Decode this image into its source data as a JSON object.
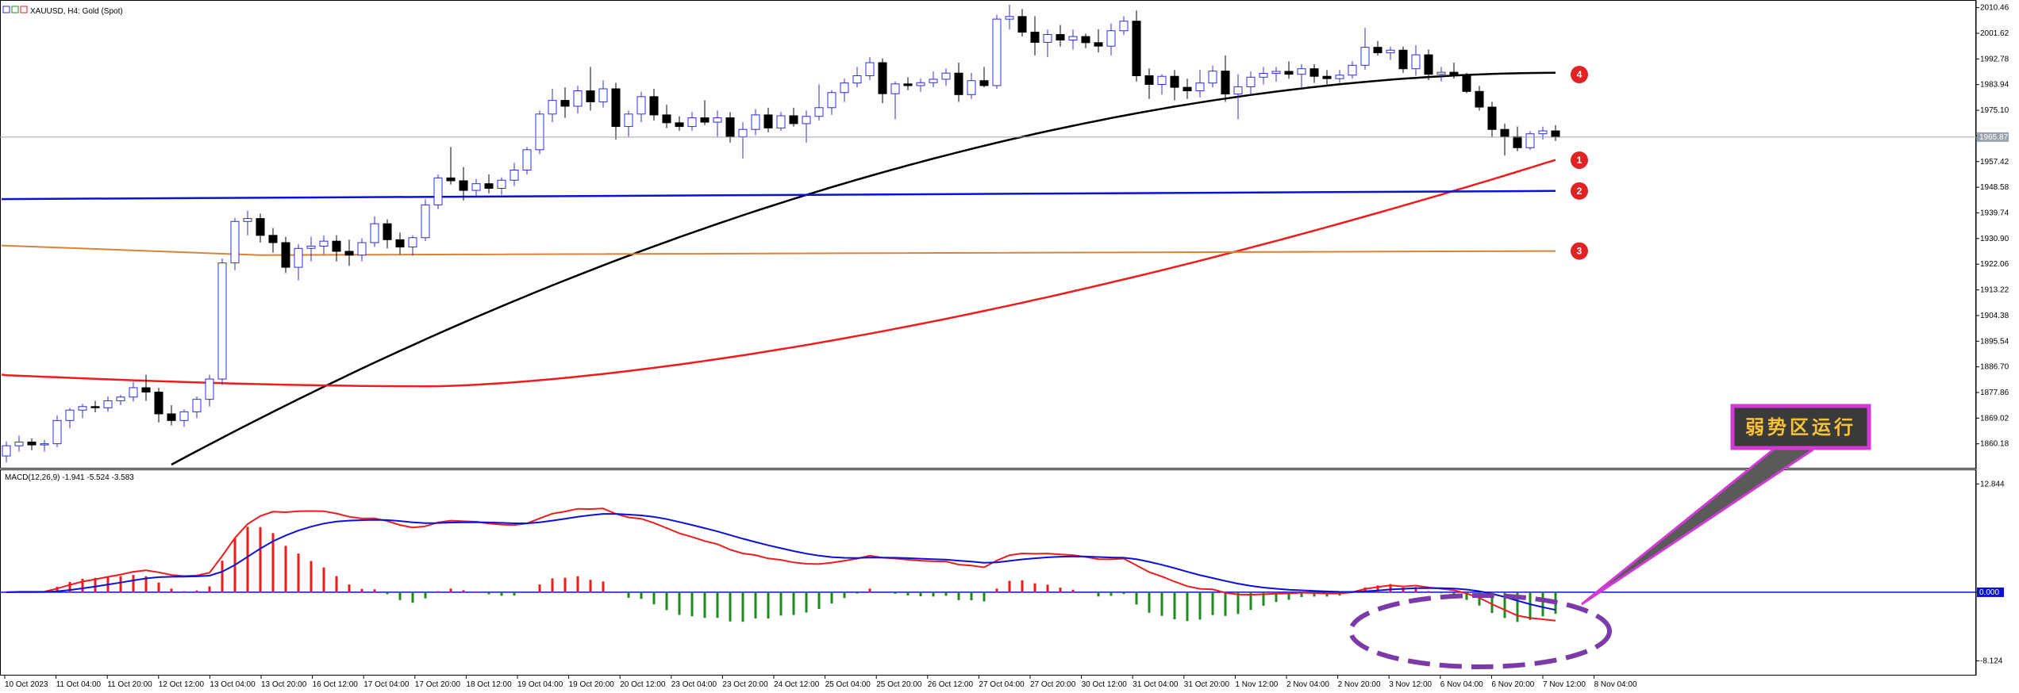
{
  "header": {
    "symbol_line": "XAUUSD, H4:  Gold (Spot)",
    "macd_line": "MACD(12,26,9) -1.941 -5.524 -3.583"
  },
  "colors": {
    "bull_candle": "#ffffff",
    "bear_candle": "#000000",
    "candle_outline": "#2c2cd8",
    "ma_black": "#000000",
    "ma_red": "#ee1c1c",
    "ma_blue": "#0a10d6",
    "ma_orange": "#d9823a",
    "macd_line": "#ee1c1c",
    "signal_line": "#0a10d6",
    "hist_pos": "#ee1c1c",
    "hist_neg": "#1f8a1f",
    "callout_border": "#d23ad6",
    "callout_fill": "#3a3a3a",
    "marker_fill": "#e02424",
    "price_line": "#9aa3ad"
  },
  "chart_data": [
    {
      "type": "candlestick",
      "name": "XAUUSD H4",
      "ylim": [
        1853.0,
        2012.0
      ],
      "y_ticks": [
        "2010.46",
        "2001.62",
        "1992.78",
        "1983.94",
        "1975.10",
        "1966.26",
        "1957.42",
        "1948.58",
        "1939.74",
        "1930.90",
        "1922.06",
        "1913.22",
        "1904.38",
        "1895.54",
        "1886.70",
        "1877.86",
        "1869.02",
        "1860.18"
      ],
      "current_price_label": "1965.87",
      "current_price": 1965.87,
      "x_ticks": [
        "10 Oct 2023",
        "11 Oct 04:00",
        "11 Oct 20:00",
        "12 Oct 12:00",
        "13 Oct 04:00",
        "13 Oct 20:00",
        "16 Oct 12:00",
        "17 Oct 04:00",
        "17 Oct 20:00",
        "18 Oct 12:00",
        "19 Oct 04:00",
        "19 Oct 20:00",
        "20 Oct 12:00",
        "23 Oct 04:00",
        "23 Oct 20:00",
        "24 Oct 12:00",
        "25 Oct 04:00",
        "25 Oct 20:00",
        "26 Oct 12:00",
        "27 Oct 04:00",
        "27 Oct 20:00",
        "30 Oct 12:00",
        "31 Oct 04:00",
        "31 Oct 20:00",
        "1 Nov 12:00",
        "2 Nov 04:00",
        "2 Nov 20:00",
        "3 Nov 12:00",
        "6 Nov 04:00",
        "6 Nov 20:00",
        "7 Nov 12:00",
        "8 Nov 04:00"
      ],
      "ohlc": [
        [
          1856.0,
          1861.0,
          1853.8,
          1859.5
        ],
        [
          1859.5,
          1863.0,
          1857.5,
          1860.8
        ],
        [
          1860.8,
          1862.0,
          1858.0,
          1859.8
        ],
        [
          1859.8,
          1861.5,
          1857.5,
          1860.2
        ],
        [
          1860.2,
          1870.0,
          1859.0,
          1868.2
        ],
        [
          1868.2,
          1872.5,
          1865.5,
          1871.8
        ],
        [
          1871.8,
          1874.0,
          1869.0,
          1873.0
        ],
        [
          1873.0,
          1875.0,
          1871.0,
          1872.6
        ],
        [
          1872.6,
          1876.5,
          1871.2,
          1875.0
        ],
        [
          1875.0,
          1877.0,
          1873.5,
          1876.3
        ],
        [
          1876.3,
          1881.5,
          1874.8,
          1879.5
        ],
        [
          1879.5,
          1884.0,
          1875.0,
          1878.0
        ],
        [
          1878.0,
          1879.5,
          1867.5,
          1870.5
        ],
        [
          1870.5,
          1873.5,
          1866.5,
          1868.2
        ],
        [
          1868.2,
          1872.0,
          1866.0,
          1871.2
        ],
        [
          1871.2,
          1876.5,
          1869.0,
          1875.5
        ],
        [
          1875.5,
          1884.0,
          1873.0,
          1882.5
        ],
        [
          1882.5,
          1924.0,
          1880.5,
          1922.5
        ],
        [
          1922.5,
          1938.0,
          1920.0,
          1936.8
        ],
        [
          1936.8,
          1940.5,
          1932.0,
          1937.8
        ],
        [
          1937.8,
          1939.5,
          1929.5,
          1932.0
        ],
        [
          1932.0,
          1934.5,
          1926.0,
          1929.5
        ],
        [
          1929.5,
          1931.5,
          1919.0,
          1921.0
        ],
        [
          1921.0,
          1929.0,
          1916.5,
          1927.5
        ],
        [
          1927.5,
          1931.5,
          1923.0,
          1928.3
        ],
        [
          1928.3,
          1932.0,
          1925.5,
          1930.0
        ],
        [
          1930.0,
          1932.0,
          1923.0,
          1926.5
        ],
        [
          1926.5,
          1930.5,
          1921.5,
          1925.2
        ],
        [
          1925.2,
          1931.0,
          1923.0,
          1929.5
        ],
        [
          1929.5,
          1938.5,
          1928.0,
          1936.0
        ],
        [
          1936.0,
          1937.5,
          1927.5,
          1930.5
        ],
        [
          1930.5,
          1933.0,
          1925.5,
          1928.0
        ],
        [
          1928.0,
          1932.0,
          1925.0,
          1931.2
        ],
        [
          1931.2,
          1944.5,
          1930.0,
          1942.5
        ],
        [
          1942.5,
          1953.0,
          1941.0,
          1951.8
        ],
        [
          1951.8,
          1962.5,
          1949.5,
          1950.8
        ],
        [
          1950.8,
          1955.5,
          1944.0,
          1947.5
        ],
        [
          1947.5,
          1951.5,
          1945.0,
          1949.8
        ],
        [
          1949.8,
          1953.0,
          1946.5,
          1948.2
        ],
        [
          1948.2,
          1952.0,
          1946.0,
          1951.0
        ],
        [
          1951.0,
          1957.0,
          1949.0,
          1954.5
        ],
        [
          1954.5,
          1962.5,
          1953.0,
          1961.5
        ],
        [
          1961.5,
          1975.0,
          1960.0,
          1973.8
        ],
        [
          1973.8,
          1982.5,
          1971.0,
          1978.5
        ],
        [
          1978.5,
          1983.0,
          1972.5,
          1976.5
        ],
        [
          1976.5,
          1983.5,
          1974.0,
          1981.8
        ],
        [
          1981.8,
          1990.0,
          1975.0,
          1978.0
        ],
        [
          1978.0,
          1985.5,
          1976.0,
          1982.5
        ],
        [
          1982.5,
          1984.5,
          1965.0,
          1969.5
        ],
        [
          1969.5,
          1975.0,
          1966.0,
          1973.8
        ],
        [
          1973.8,
          1981.5,
          1971.0,
          1979.8
        ],
        [
          1979.8,
          1982.5,
          1971.5,
          1973.5
        ],
        [
          1973.5,
          1977.0,
          1969.0,
          1970.8
        ],
        [
          1970.8,
          1973.0,
          1968.0,
          1969.5
        ],
        [
          1969.5,
          1974.5,
          1968.0,
          1972.5
        ],
        [
          1972.5,
          1978.5,
          1970.0,
          1971.0
        ],
        [
          1971.0,
          1975.0,
          1966.0,
          1972.5
        ],
        [
          1972.5,
          1974.5,
          1964.0,
          1966.0
        ],
        [
          1966.0,
          1971.0,
          1958.5,
          1968.5
        ],
        [
          1968.5,
          1975.5,
          1966.5,
          1973.5
        ],
        [
          1973.5,
          1976.0,
          1967.5,
          1969.0
        ],
        [
          1969.0,
          1974.5,
          1968.0,
          1973.2
        ],
        [
          1973.2,
          1976.0,
          1969.5,
          1970.5
        ],
        [
          1970.5,
          1975.0,
          1964.0,
          1973.0
        ],
        [
          1973.0,
          1984.0,
          1971.5,
          1976.0
        ],
        [
          1976.0,
          1982.0,
          1973.5,
          1981.2
        ],
        [
          1981.2,
          1986.0,
          1978.0,
          1984.5
        ],
        [
          1984.5,
          1990.0,
          1983.0,
          1987.0
        ],
        [
          1987.0,
          1993.5,
          1985.5,
          1991.5
        ],
        [
          1991.5,
          1993.0,
          1977.5,
          1980.8
        ],
        [
          1980.8,
          1985.0,
          1972.0,
          1984.2
        ],
        [
          1984.2,
          1986.5,
          1982.0,
          1983.6
        ],
        [
          1983.6,
          1986.0,
          1981.5,
          1984.6
        ],
        [
          1984.6,
          1988.5,
          1983.0,
          1985.8
        ],
        [
          1985.8,
          1989.5,
          1983.5,
          1987.9
        ],
        [
          1987.9,
          1991.5,
          1978.0,
          1980.5
        ],
        [
          1980.5,
          1988.0,
          1979.0,
          1985.3
        ],
        [
          1985.3,
          1990.0,
          1983.0,
          1983.6
        ],
        [
          1983.6,
          2008.0,
          1982.5,
          2006.5
        ],
        [
          2006.5,
          2011.5,
          2003.0,
          2007.4
        ],
        [
          2007.4,
          2010.0,
          2000.5,
          2002.0
        ],
        [
          2002.0,
          2007.5,
          1994.0,
          1998.5
        ],
        [
          1998.5,
          2003.0,
          1993.5,
          2001.2
        ],
        [
          2001.2,
          2004.5,
          1997.0,
          1999.3
        ],
        [
          1999.3,
          2003.0,
          1996.0,
          2000.5
        ],
        [
          2000.5,
          2001.5,
          1996.5,
          1998.4
        ],
        [
          1998.4,
          2003.0,
          1995.0,
          1997.2
        ],
        [
          1997.2,
          2005.0,
          1994.0,
          2002.5
        ],
        [
          2002.5,
          2007.5,
          2001.0,
          2005.8
        ],
        [
          2005.8,
          2009.5,
          1985.0,
          1987.0
        ],
        [
          1987.0,
          1989.5,
          1979.0,
          1984.0
        ],
        [
          1984.0,
          1987.5,
          1980.5,
          1986.8
        ],
        [
          1986.8,
          1989.0,
          1978.5,
          1983.0
        ],
        [
          1983.0,
          1986.0,
          1979.0,
          1981.8
        ],
        [
          1981.8,
          1989.0,
          1979.5,
          1984.5
        ],
        [
          1984.5,
          1990.5,
          1983.0,
          1988.6
        ],
        [
          1988.6,
          1994.0,
          1978.0,
          1980.7
        ],
        [
          1980.7,
          1987.5,
          1972.0,
          1983.2
        ],
        [
          1983.2,
          1988.5,
          1980.5,
          1986.5
        ],
        [
          1986.5,
          1990.0,
          1984.0,
          1987.8
        ],
        [
          1987.8,
          1990.0,
          1985.0,
          1988.5
        ],
        [
          1988.5,
          1992.0,
          1986.0,
          1987.5
        ],
        [
          1987.5,
          1991.0,
          1983.0,
          1989.4
        ],
        [
          1989.4,
          1991.0,
          1984.5,
          1986.8
        ],
        [
          1986.8,
          1989.0,
          1984.0,
          1986.0
        ],
        [
          1986.0,
          1989.0,
          1984.5,
          1987.2
        ],
        [
          1987.2,
          1992.0,
          1986.0,
          1990.6
        ],
        [
          1990.6,
          2003.5,
          1989.0,
          1996.8
        ],
        [
          1996.8,
          1999.0,
          1994.0,
          1994.9
        ],
        [
          1994.9,
          1997.0,
          1992.5,
          1995.8
        ],
        [
          1995.8,
          1997.0,
          1988.0,
          1989.4
        ],
        [
          1989.4,
          1997.5,
          1987.0,
          1994.2
        ],
        [
          1994.2,
          1996.0,
          1985.5,
          1987.5
        ],
        [
          1987.5,
          1990.0,
          1985.0,
          1988.2
        ],
        [
          1988.2,
          1991.5,
          1986.0,
          1987.0
        ],
        [
          1987.0,
          1988.0,
          1981.0,
          1981.6
        ],
        [
          1981.6,
          1983.5,
          1975.0,
          1976.2
        ],
        [
          1976.2,
          1978.0,
          1966.0,
          1968.5
        ],
        [
          1968.5,
          1970.5,
          1959.5,
          1966.0
        ],
        [
          1966.0,
          1969.5,
          1961.0,
          1962.2
        ],
        [
          1962.2,
          1968.0,
          1961.5,
          1967.0
        ],
        [
          1967.0,
          1969.5,
          1965.0,
          1968.0
        ],
        [
          1968.0,
          1970.0,
          1964.5,
          1965.9
        ]
      ],
      "overlays": [
        {
          "name": "black MA",
          "color": "#000000",
          "type": "line"
        },
        {
          "name": "red MA",
          "color": "#ee1c1c",
          "type": "line"
        },
        {
          "name": "blue line",
          "color": "#0a10d6",
          "type": "line"
        },
        {
          "name": "orange line",
          "color": "#d9823a",
          "type": "line"
        }
      ],
      "markers": [
        {
          "label": "1",
          "price": 1957.9
        },
        {
          "label": "2",
          "price": 1947.3
        },
        {
          "label": "3",
          "price": 1926.6
        },
        {
          "label": "4",
          "price": 1987.4
        }
      ],
      "callout": "弱势区运行"
    },
    {
      "type": "macd",
      "name": "MACD(12,26,9)",
      "macd_value": -1.941,
      "signal_value": -5.524,
      "hist_value": -3.583,
      "ylim": [
        -9.5,
        14.0
      ],
      "y_ticks": [
        "12.844",
        "0.000",
        "-8.124"
      ]
    }
  ]
}
